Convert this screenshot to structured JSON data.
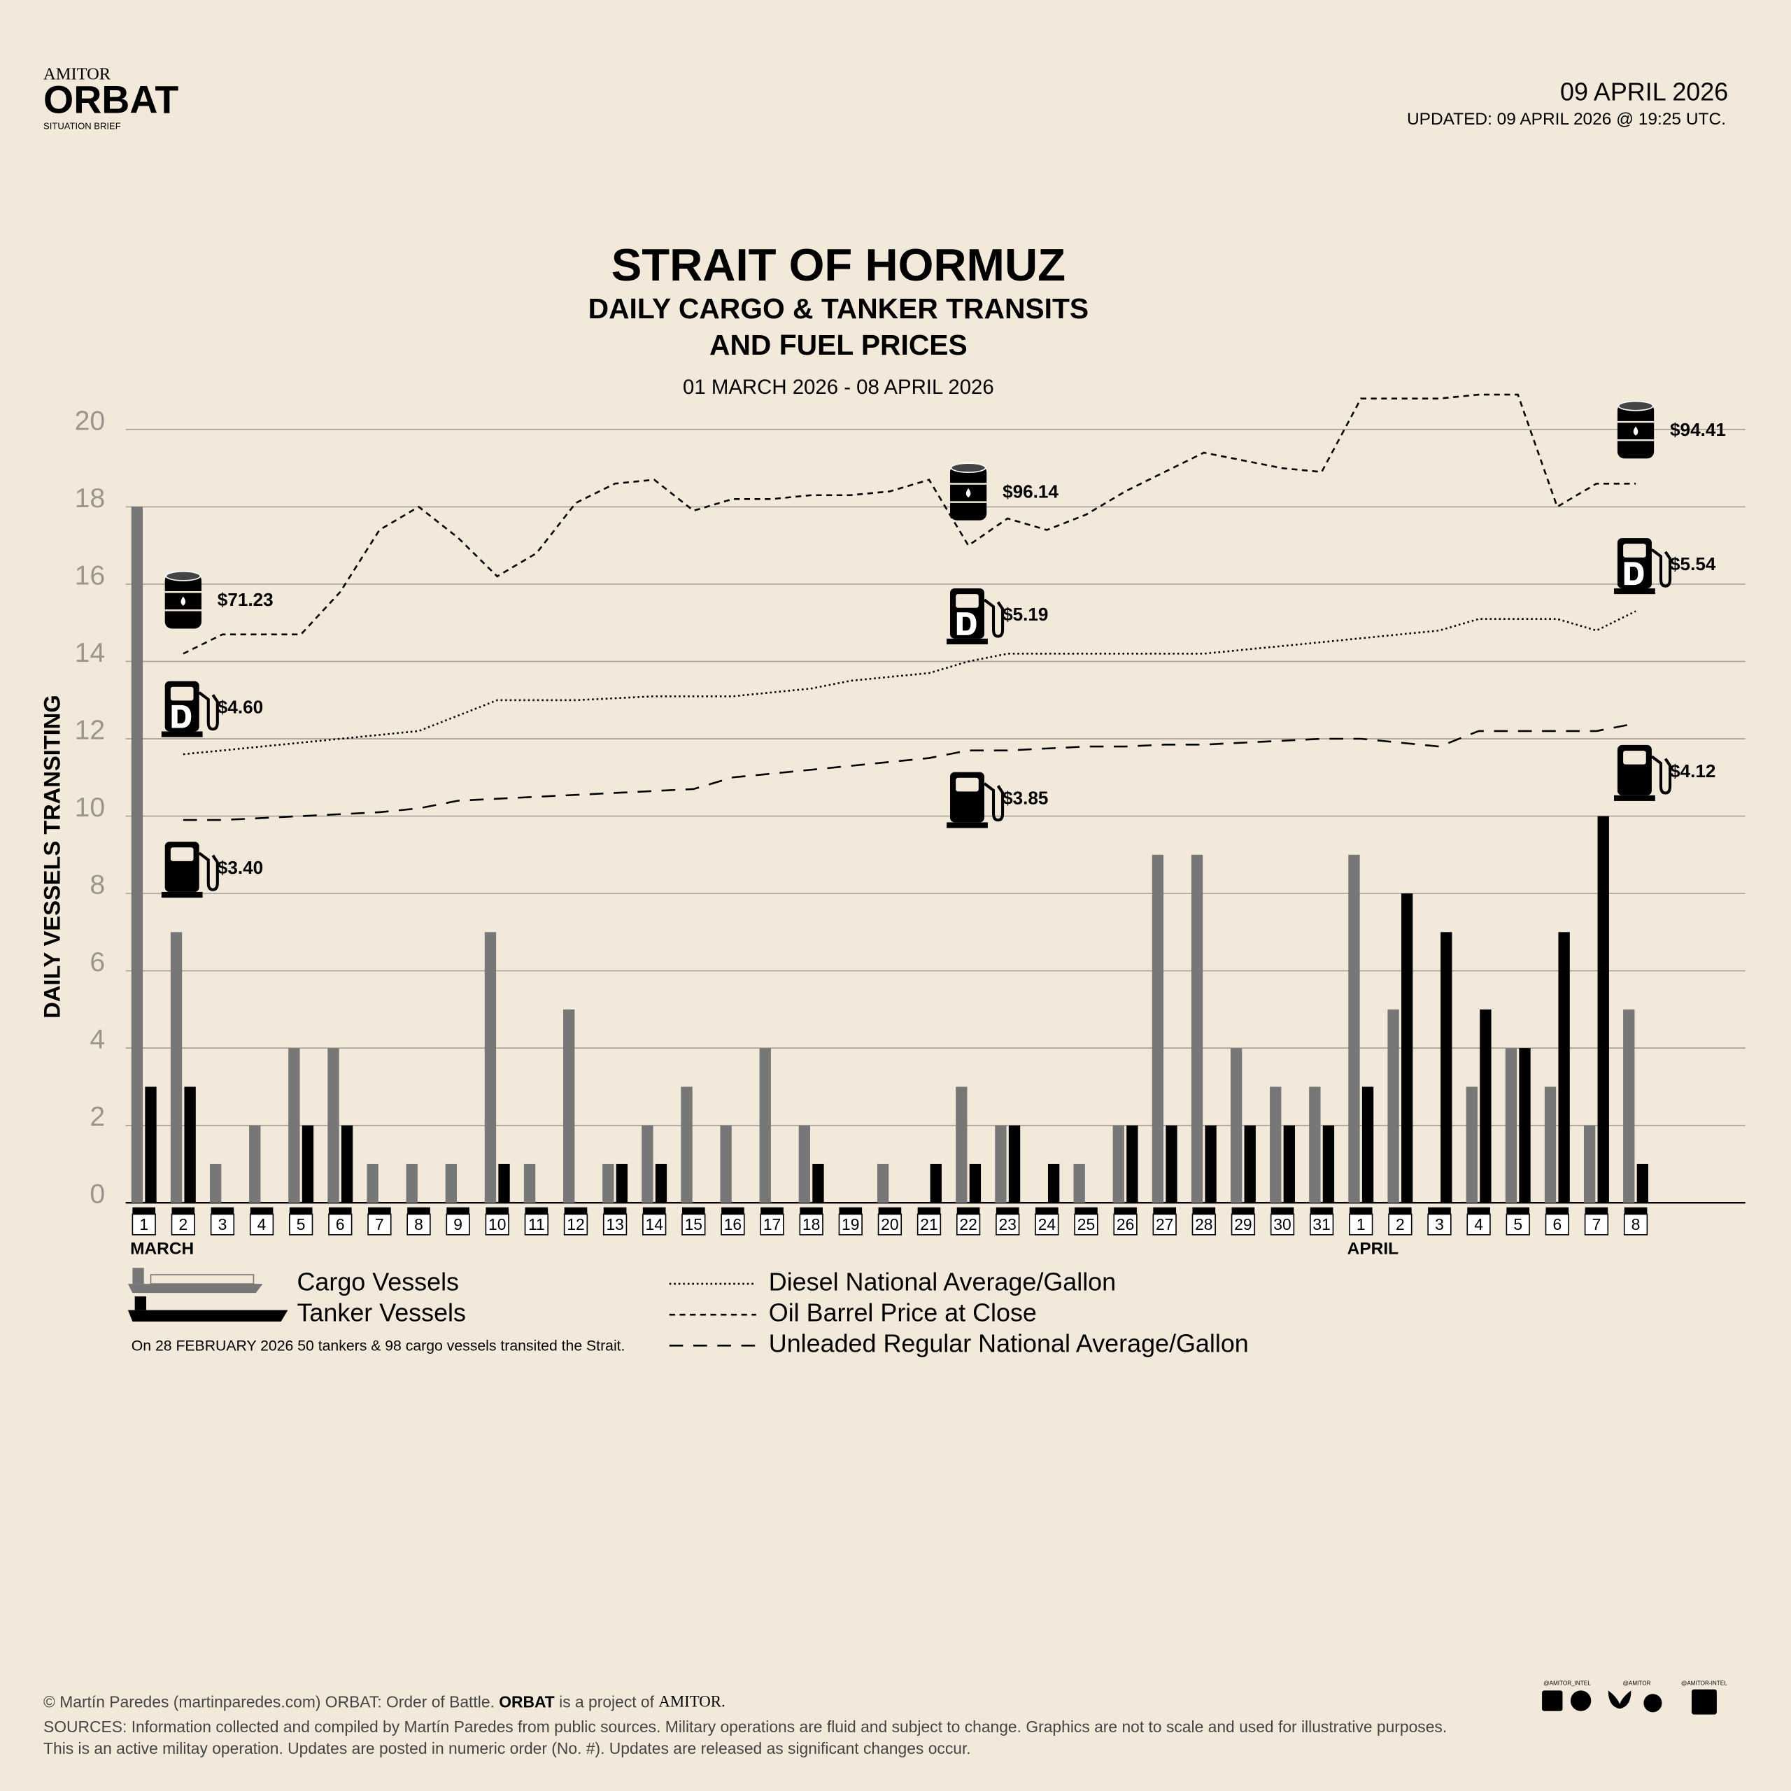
{
  "header": {
    "brand_top": "AMITOR",
    "brand": "ORBAT",
    "brand_sub": "SITUATION BRIEF",
    "date": "09 APRIL 2026",
    "updated": "UPDATED: 09 APRIL 2026 @ 19:25 UTC."
  },
  "chart_data": {
    "type": "bar",
    "title": "STRAIT OF HORMUZ",
    "subtitle": [
      "DAILY CARGO & TANKER TRANSITS",
      "AND FUEL PRICES"
    ],
    "date_range": "01 MARCH 2026 - 08 APRIL 2026",
    "y_label": "DAILY VESSELS TRANSITING",
    "categories": [
      "1",
      "2",
      "3",
      "4",
      "5",
      "6",
      "7",
      "8",
      "9",
      "10",
      "11",
      "12",
      "13",
      "14",
      "15",
      "16",
      "17",
      "18",
      "19",
      "20",
      "21",
      "22",
      "23",
      "24",
      "25",
      "26",
      "27",
      "28",
      "29",
      "30",
      "31",
      "1",
      "2",
      "3",
      "4",
      "5",
      "6",
      "7",
      "8"
    ],
    "month_labels": [
      {
        "text": "MARCH",
        "index": 0
      },
      {
        "text": "APRIL",
        "index": 31
      }
    ],
    "ylim": [
      0,
      20
    ],
    "yticks": [
      0,
      2,
      4,
      6,
      8,
      10,
      12,
      14,
      16,
      18,
      20
    ],
    "grid": true,
    "series": [
      {
        "name": "Cargo Vessels",
        "type": "bar",
        "color": "#777777",
        "values": [
          18,
          7,
          1,
          2,
          4,
          4,
          1,
          1,
          1,
          7,
          1,
          5,
          1,
          2,
          3,
          2,
          4,
          2,
          0,
          1,
          0,
          3,
          2,
          0,
          1,
          2,
          9,
          9,
          4,
          3,
          3,
          9,
          5,
          0,
          3,
          4,
          3,
          2,
          5
        ]
      },
      {
        "name": "Tanker Vessels",
        "type": "bar",
        "color": "#000000",
        "values": [
          3,
          3,
          0,
          0,
          2,
          2,
          0,
          0,
          0,
          1,
          0,
          0,
          1,
          1,
          0,
          0,
          0,
          1,
          0,
          0,
          1,
          1,
          2,
          1,
          0,
          2,
          2,
          2,
          2,
          2,
          2,
          3,
          8,
          7,
          5,
          4,
          7,
          10,
          1
        ]
      },
      {
        "name": "Diesel National Average/Gallon",
        "type": "line",
        "dash": "dotted",
        "color": "#000000",
        "values": [
          null,
          11.6,
          11.7,
          11.8,
          11.9,
          12.0,
          12.1,
          12.2,
          12.6,
          13.0,
          13.0,
          13.0,
          13.05,
          13.1,
          13.1,
          13.1,
          13.2,
          13.3,
          13.5,
          13.6,
          13.7,
          14.0,
          14.2,
          14.2,
          14.2,
          14.2,
          14.2,
          14.2,
          14.3,
          14.4,
          14.5,
          14.6,
          14.7,
          14.8,
          15.1,
          15.1,
          15.1,
          14.8,
          15.3
        ]
      },
      {
        "name": "Oil Barrel Price at Close",
        "type": "line",
        "dash": "dashed",
        "color": "#000000",
        "values": [
          null,
          14.2,
          14.7,
          14.7,
          14.7,
          15.8,
          17.4,
          18.0,
          17.2,
          16.2,
          16.8,
          18.1,
          18.6,
          18.7,
          17.9,
          18.2,
          18.2,
          18.3,
          18.3,
          18.4,
          18.7,
          17.0,
          17.7,
          17.4,
          17.8,
          18.4,
          18.9,
          19.4,
          19.2,
          19.0,
          18.9,
          20.8,
          20.8,
          20.8,
          20.9,
          20.9,
          18.0,
          18.6,
          18.6
        ]
      },
      {
        "name": "Unleaded Regular National Average/Gallon",
        "type": "line",
        "dash": "long-dashed",
        "color": "#000000",
        "values": [
          null,
          9.9,
          9.9,
          9.95,
          10.0,
          10.05,
          10.1,
          10.2,
          10.4,
          10.45,
          10.5,
          10.55,
          10.6,
          10.65,
          10.7,
          11.0,
          11.1,
          11.2,
          11.3,
          11.4,
          11.5,
          11.7,
          11.7,
          11.75,
          11.8,
          11.8,
          11.85,
          11.85,
          11.9,
          11.95,
          12.0,
          12.0,
          11.9,
          11.8,
          12.2,
          12.2,
          12.2,
          12.2,
          12.4
        ]
      }
    ],
    "annotations": [
      {
        "series": 3,
        "index": 1,
        "text": "$71.23"
      },
      {
        "series": 3,
        "index": 21,
        "text": "$96.14"
      },
      {
        "series": 3,
        "index": 38,
        "text": "$94.41"
      },
      {
        "series": 2,
        "index": 1,
        "text": "$4.60"
      },
      {
        "series": 2,
        "index": 21,
        "text": "$5.19"
      },
      {
        "series": 2,
        "index": 38,
        "text": "$5.54"
      },
      {
        "series": 4,
        "index": 1,
        "text": "$3.40"
      },
      {
        "series": 4,
        "index": 21,
        "text": "$3.85"
      },
      {
        "series": 4,
        "index": 38,
        "text": "$4.12"
      }
    ],
    "note": "On 28 FEBRUARY 2026 50 tankers & 98 cargo vessels transited the Strait."
  },
  "footer": {
    "credit": "© Martín Paredes (martinparedes.com) ORBAT: Order of Battle.",
    "brand": "ORBAT",
    "project": "is a project of",
    "amitor": "AMITOR.",
    "sources": "SOURCES: Information collected and compiled by Martín Paredes from public sources. Military operations are fluid and subject to change. Graphics are not to scale and used for illustrative purposes.",
    "note": "This is an active militay operation. Updates are posted in numeric order (No. #). Updates are released as significant changes occur.",
    "handles": [
      "@AMITOR_INTEL",
      "@AMITOR",
      "@AMITOR-INTEL"
    ]
  }
}
